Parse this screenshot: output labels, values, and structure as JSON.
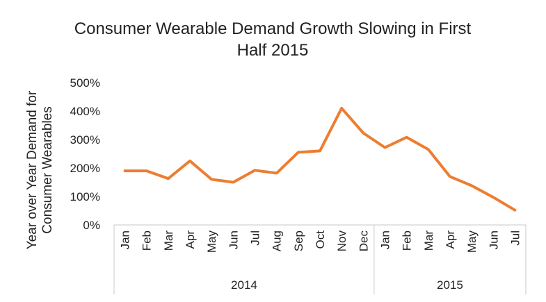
{
  "chart_data": {
    "type": "line",
    "title_lines": [
      "Consumer Wearable Demand Growth Slowing in First",
      "Half 2015"
    ],
    "ylabel_lines": [
      "Year over Year Demand for",
      "Consumer Wearables"
    ],
    "xlabel": "",
    "ylim": [
      0,
      500
    ],
    "yticks": [
      0,
      100,
      200,
      300,
      400,
      500
    ],
    "ytick_labels": [
      "0%",
      "100%",
      "200%",
      "300%",
      "400%",
      "500%"
    ],
    "grid": false,
    "legend": "none",
    "categories": [
      "Jan",
      "Feb",
      "Mar",
      "Apr",
      "May",
      "Jun",
      "Jul",
      "Aug",
      "Sep",
      "Oct",
      "Nov",
      "Dec",
      "Jan",
      "Feb",
      "Mar",
      "Apr",
      "May",
      "Jun",
      "Jul"
    ],
    "groups": [
      {
        "label": "2014",
        "count": 12
      },
      {
        "label": "2015",
        "count": 7
      }
    ],
    "series": [
      {
        "values": [
          190,
          190,
          163,
          225,
          160,
          150,
          192,
          182,
          255,
          260,
          410,
          323,
          272,
          308,
          265,
          170,
          138,
          97,
          52
        ],
        "color": "#ED7D31"
      }
    ]
  }
}
